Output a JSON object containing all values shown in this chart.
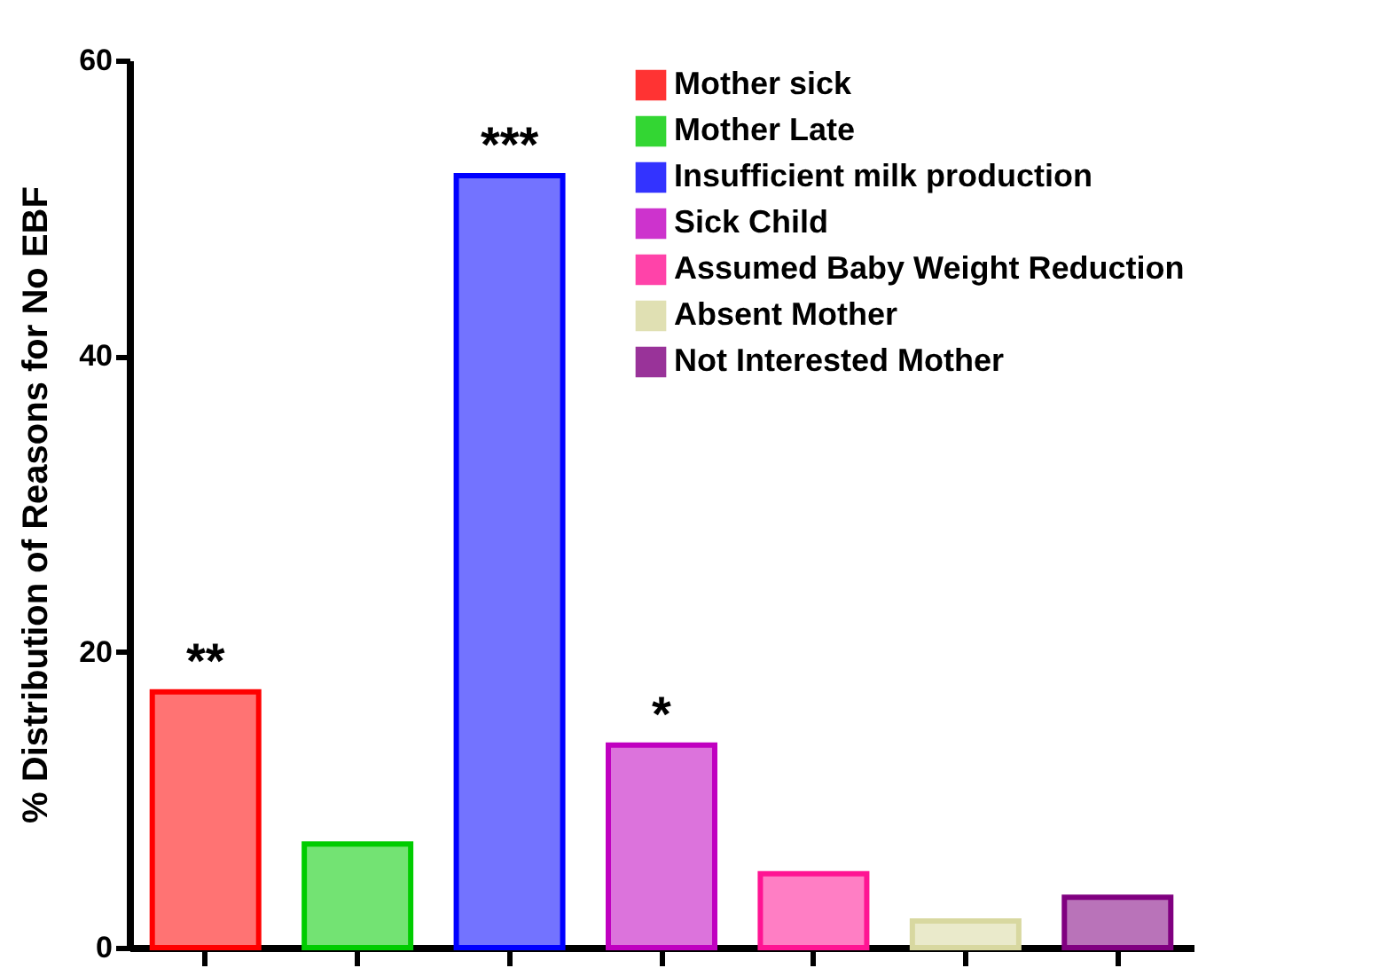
{
  "chart_data": {
    "type": "bar",
    "ylabel": "% Distribution of Reasons for No EBF",
    "categories": [
      null,
      null,
      null,
      null,
      null,
      null,
      null
    ],
    "series": [
      {
        "name": "Mother sick",
        "color": "#ff0000",
        "values": [
          17.3,
          null,
          null,
          null,
          null,
          null,
          null
        ]
      },
      {
        "name": "Mother Late",
        "color": "#00cc00",
        "values": [
          null,
          7.0,
          null,
          null,
          null,
          null,
          null
        ]
      },
      {
        "name": "Insufficient milk production",
        "color": "#0000ff",
        "values": [
          null,
          null,
          52.2,
          null,
          null,
          null,
          null
        ]
      },
      {
        "name": "Sick Child",
        "color": "#c000c0",
        "values": [
          null,
          null,
          null,
          13.7,
          null,
          null,
          null
        ]
      },
      {
        "name": "Assumed Baby Weight Reduction",
        "color": "#ff1493",
        "values": [
          null,
          null,
          null,
          null,
          5.0,
          null,
          null
        ]
      },
      {
        "name": "Absent Mother",
        "color": "#d8d8a0",
        "values": [
          null,
          null,
          null,
          null,
          null,
          1.8,
          null
        ]
      },
      {
        "name": "Not Interested Mother",
        "color": "#800080",
        "values": [
          null,
          null,
          null,
          null,
          null,
          null,
          3.4
        ]
      }
    ],
    "ylim": [
      0,
      60
    ],
    "yticks": [
      0,
      20,
      40,
      60
    ],
    "grid": false,
    "legend": "top right",
    "tick_labels": "y",
    "annotations": [
      {
        "text": "**",
        "y": 17.3
      },
      {
        "text": "***",
        "y": 52.2
      },
      {
        "text": "*",
        "y": 13.7
      }
    ]
  }
}
